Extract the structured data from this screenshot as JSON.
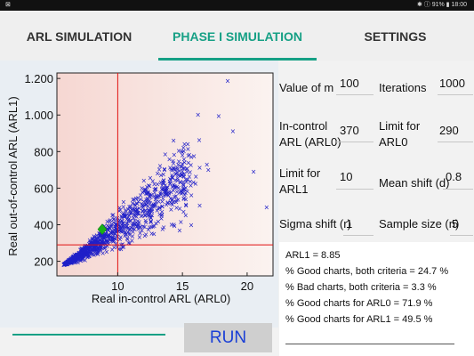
{
  "status": {
    "left": "⊠",
    "right": "✱ ⓘ 91% ▮ 18:00"
  },
  "tabs": [
    {
      "label": "ARL SIMULATION"
    },
    {
      "label": "PHASE I SIMULATION"
    },
    {
      "label": "SETTINGS"
    }
  ],
  "params": {
    "value_m_label": "Value of m",
    "value_m": "100",
    "iterations_label": "Iterations",
    "iterations": "1000",
    "arl0_label_1": "In-control",
    "arl0_label_2": "ARL (ARL0)",
    "arl0": "370",
    "limit_arl0_label_1": "Limit for",
    "limit_arl0_label_2": "ARL0",
    "limit_arl0": "290",
    "limit_arl1_label_1": "Limit for",
    "limit_arl1_label_2": "ARL1",
    "limit_arl1": "10",
    "mean_shift_label": "Mean shift (d)",
    "mean_shift": "0.8",
    "sigma_shift_label": "Sigma shift (r)",
    "sigma_shift": "1",
    "sample_size_label": "Sample size (n)",
    "sample_size": "5"
  },
  "results": {
    "arl1": "ARL1 = 8.85",
    "good_both": "% Good charts, both criteria = 24.7 %",
    "bad_both": "% Bad charts, both criteria = 3.3 %",
    "good_arl0": "% Good charts for ARL0 = 71.9 %",
    "good_arl1": "% Good charts for ARL1 = 49.5 %"
  },
  "run_label": "RUN",
  "chart_data": {
    "type": "scatter",
    "xlabel": "Real in-control ARL (ARL0)",
    "ylabel": "Real out-of-control ARL (ARL1)",
    "xticks": [
      "10",
      "15",
      "20"
    ],
    "yticks": [
      "200",
      "400",
      "600",
      "800",
      "1.000",
      "1.200"
    ],
    "xlim": [
      5.3,
      22.0
    ],
    "ylim": [
      120,
      1230
    ],
    "limit_x": 10,
    "limit_y": 290,
    "marker_color": "#2020c8",
    "limit_color": "#e01010",
    "highlight_color": "#18b018",
    "highlight_point": {
      "x": 8.8,
      "y": 375
    },
    "points_sample": [
      {
        "x": 18.5,
        "y": 1185
      },
      {
        "x": 16.2,
        "y": 1000
      },
      {
        "x": 17.8,
        "y": 995
      },
      {
        "x": 20.5,
        "y": 690
      },
      {
        "x": 21.5,
        "y": 495
      },
      {
        "x": 18.9,
        "y": 910
      },
      {
        "x": 15.0,
        "y": 780
      },
      {
        "x": 14.0,
        "y": 635
      },
      {
        "x": 17.0,
        "y": 700
      },
      {
        "x": 12.5,
        "y": 520
      },
      {
        "x": 11.0,
        "y": 420
      },
      {
        "x": 9.0,
        "y": 340
      },
      {
        "x": 6.2,
        "y": 195
      },
      {
        "x": 7.0,
        "y": 240
      },
      {
        "x": 8.0,
        "y": 300
      }
    ]
  }
}
